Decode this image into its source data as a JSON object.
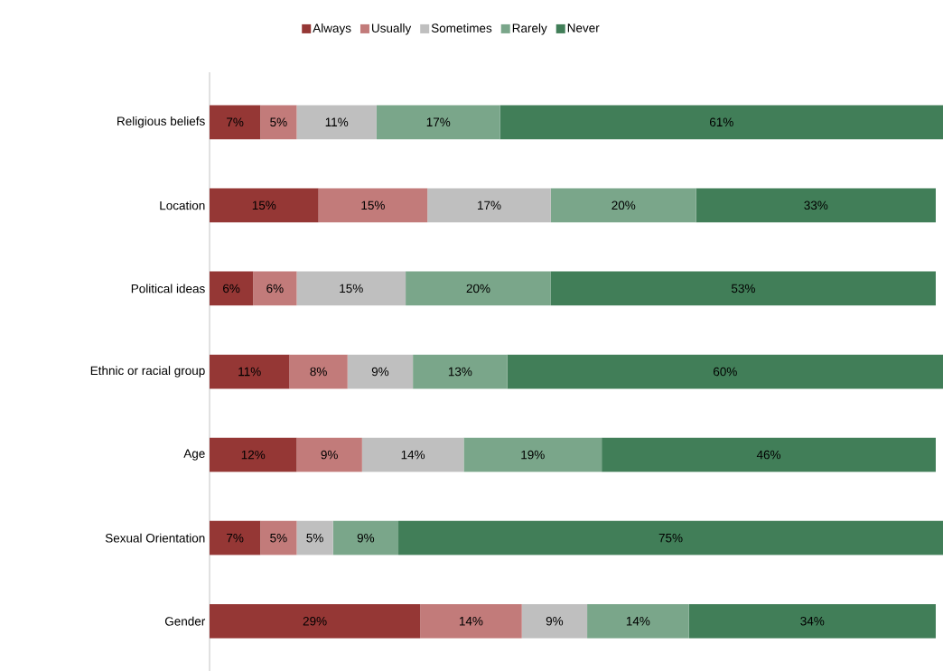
{
  "chart_data": {
    "type": "bar",
    "orientation": "horizontal",
    "stacked": true,
    "legend": "top",
    "categories": [
      "Religious beliefs",
      "Location",
      "Political ideas",
      "Ethnic or racial group",
      "Age",
      "Sexual Orientation",
      "Gender"
    ],
    "series": [
      {
        "name": "Always",
        "color": "#953735",
        "values": [
          7,
          15,
          6,
          11,
          12,
          7,
          29
        ],
        "value_labels": [
          "7%",
          "15%",
          "6%",
          "11%",
          "12%",
          "7%",
          "29%"
        ]
      },
      {
        "name": "Usually",
        "color": "#c27b7a",
        "values": [
          5,
          15,
          6,
          8,
          9,
          5,
          14
        ],
        "value_labels": [
          "5%",
          "15%",
          "6%",
          "8%",
          "9%",
          "5%",
          "14%"
        ]
      },
      {
        "name": "Sometimes",
        "color": "#bfbfbf",
        "values": [
          11,
          17,
          15,
          9,
          14,
          5,
          9
        ],
        "value_labels": [
          "11%",
          "17%",
          "15%",
          "9%",
          "14%",
          "5%",
          "9%"
        ]
      },
      {
        "name": "Rarely",
        "color": "#7aa68a",
        "values": [
          17,
          20,
          20,
          13,
          19,
          9,
          14
        ],
        "value_labels": [
          "17%",
          "20%",
          "20%",
          "13%",
          "19%",
          "9%",
          "14%"
        ]
      },
      {
        "name": "Never",
        "color": "#417e58",
        "values": [
          61,
          33,
          53,
          60,
          46,
          75,
          34
        ],
        "value_labels": [
          "61%",
          "33%",
          "53%",
          "60%",
          "46%",
          "75%",
          "34%"
        ]
      }
    ]
  }
}
